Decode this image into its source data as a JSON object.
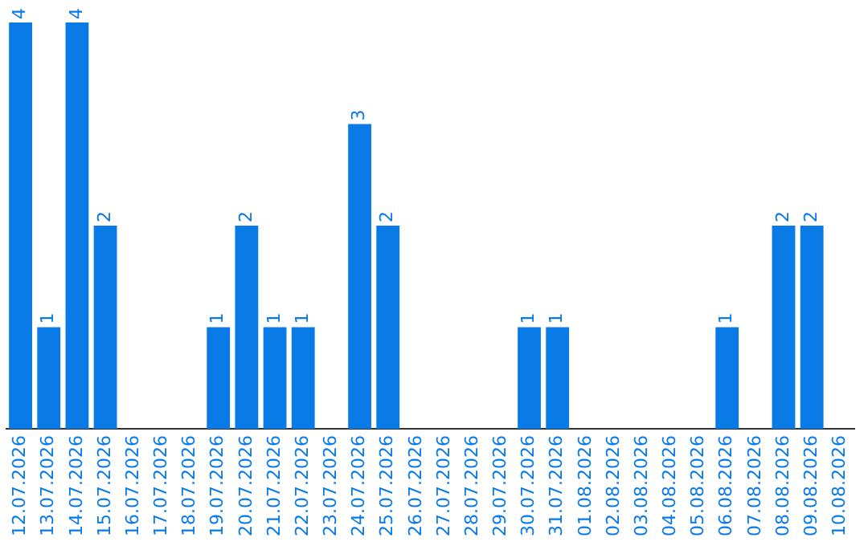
{
  "chart_data": {
    "type": "bar",
    "categories": [
      "12.07.2026",
      "13.07.2026",
      "14.07.2026",
      "15.07.2026",
      "16.07.2026",
      "17.07.2026",
      "18.07.2026",
      "19.07.2026",
      "20.07.2026",
      "21.07.2026",
      "22.07.2026",
      "23.07.2026",
      "24.07.2026",
      "25.07.2026",
      "26.07.2026",
      "27.07.2026",
      "28.07.2026",
      "29.07.2026",
      "30.07.2026",
      "31.07.2026",
      "01.08.2026",
      "02.08.2026",
      "03.08.2026",
      "04.08.2026",
      "05.08.2026",
      "06.08.2026",
      "07.08.2026",
      "08.08.2026",
      "09.08.2026",
      "10.08.2026"
    ],
    "values": [
      4,
      1,
      4,
      2,
      0,
      0,
      0,
      1,
      2,
      1,
      1,
      0,
      3,
      2,
      0,
      0,
      0,
      0,
      1,
      1,
      0,
      0,
      0,
      0,
      0,
      1,
      0,
      2,
      2,
      0
    ],
    "value_labels": [
      "4",
      "1",
      "4",
      "2",
      null,
      null,
      null,
      "1",
      "2",
      "1",
      "1",
      null,
      "3",
      "2",
      null,
      null,
      null,
      null,
      "1",
      "1",
      null,
      null,
      null,
      null,
      null,
      "1",
      null,
      "2",
      "2",
      null
    ],
    "color": "#0a7be6"
  }
}
